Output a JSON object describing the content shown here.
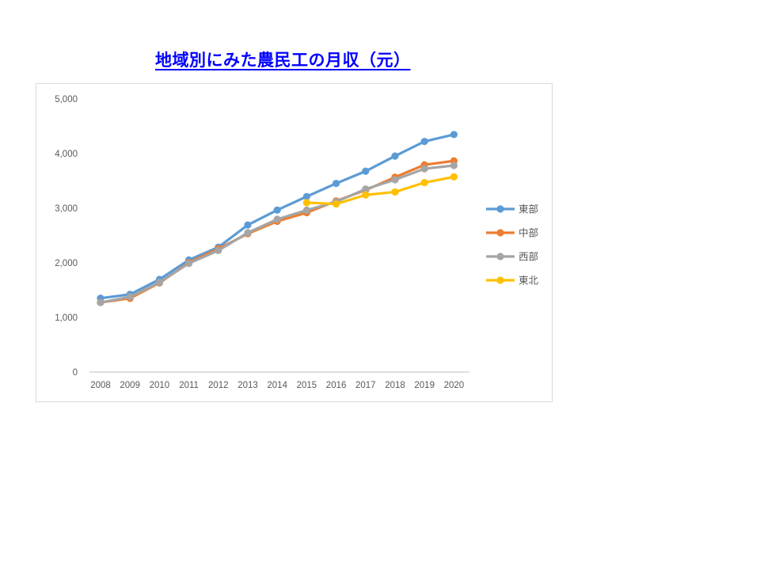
{
  "title": {
    "text": "地域別にみた農民工の月収（元）",
    "color": "#0000ff"
  },
  "chart_data": {
    "type": "line",
    "title": "地域別にみた農民工の月収（元）",
    "xlabel": "",
    "ylabel": "",
    "categories": [
      "2008",
      "2009",
      "2010",
      "2011",
      "2012",
      "2013",
      "2014",
      "2015",
      "2016",
      "2017",
      "2018",
      "2019",
      "2020"
    ],
    "series": [
      {
        "name": "東部",
        "color": "#5b9bd5",
        "values": [
          1352,
          1422,
          1696,
          2053,
          2286,
          2693,
          2966,
          3213,
          3454,
          3677,
          3955,
          4222,
          4349
        ]
      },
      {
        "name": "中部",
        "color": "#ed7d31",
        "values": [
          1275,
          1350,
          1632,
          2006,
          2257,
          2534,
          2761,
          2918,
          3132,
          3331,
          3568,
          3794,
          3866
        ]
      },
      {
        "name": "西部",
        "color": "#a5a5a5",
        "values": [
          1273,
          1378,
          1643,
          1990,
          2226,
          2551,
          2797,
          2964,
          3117,
          3350,
          3522,
          3723,
          3783
        ]
      },
      {
        "name": "東北",
        "color": "#ffc000",
        "values": [
          null,
          null,
          null,
          null,
          null,
          null,
          null,
          3102,
          3077,
          3243,
          3298,
          3469,
          3574
        ]
      }
    ],
    "ylim": [
      0,
      5000
    ],
    "y_tick_labels": [
      "0",
      "1,000",
      "2,000",
      "3,000",
      "4,000",
      "5,000"
    ],
    "y_tick_values": [
      0,
      1000,
      2000,
      3000,
      4000,
      5000
    ],
    "grid": false,
    "legend_position": "right",
    "marker": "circle",
    "axis_label_color": "#595959",
    "axis_line_color": "#c9c9c9"
  }
}
